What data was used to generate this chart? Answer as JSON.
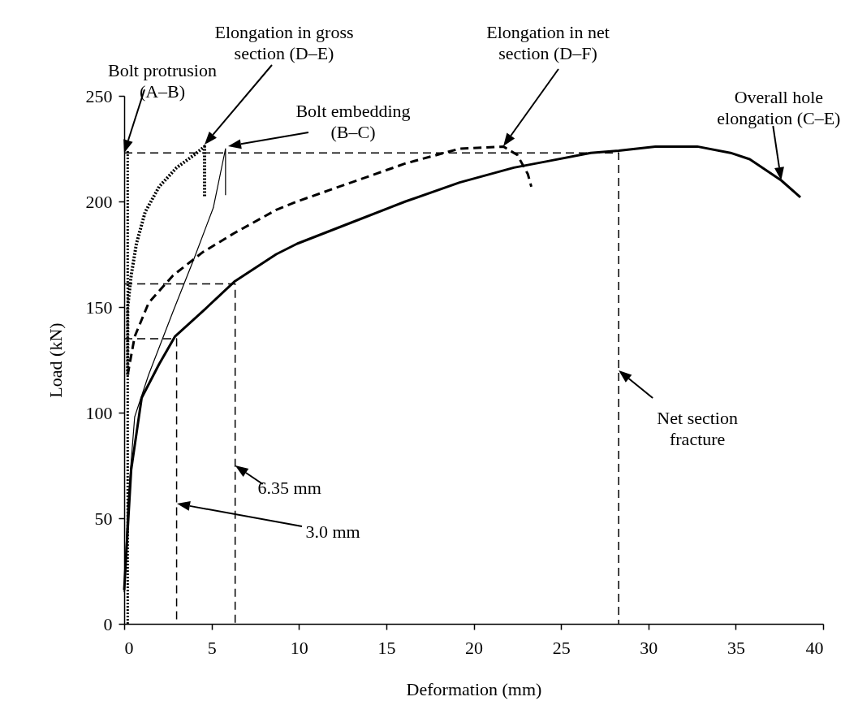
{
  "chart_data": {
    "type": "line",
    "xlabel": "Deformation (mm)",
    "ylabel": "Load (kN)",
    "xlim": [
      0,
      40
    ],
    "ylim": [
      0,
      250
    ],
    "xticks": [
      0,
      5,
      10,
      15,
      20,
      25,
      30,
      35,
      40
    ],
    "yticks": [
      0,
      50,
      100,
      150,
      200,
      250
    ],
    "grid": false,
    "series": [
      {
        "color": "#000000",
        "line_style": "dotted",
        "x": [
          0.2,
          0.2
        ],
        "values": [
          0,
          224
        ]
      },
      {
        "color": "#000000",
        "line_style": "dotted",
        "x": [
          0.2,
          0.2,
          0.4,
          0.7,
          1.2,
          2,
          3,
          4,
          4.6,
          4.6
        ],
        "values": [
          118,
          150,
          165,
          180,
          195,
          207,
          216,
          222,
          226,
          202
        ]
      },
      {
        "color": "#000000",
        "line_style": "solid",
        "x": [
          0,
          0.2,
          0.6,
          1.4,
          2.8,
          4.0,
          5.1,
          5.8,
          5.8
        ],
        "values": [
          15,
          56,
          98,
          118,
          148,
          173,
          197,
          225,
          203
        ]
      },
      {
        "color": "#000000",
        "line_style": "dashed",
        "x": [
          0.2,
          0.6,
          1.4,
          2.8,
          4.5,
          6.3,
          8.7,
          9.9,
          13.0,
          16.1,
          19.2,
          21.7,
          22.5,
          23.1,
          23.3
        ],
        "values": [
          118,
          136,
          152,
          165,
          176,
          185,
          196,
          200,
          209,
          218,
          225,
          226,
          222,
          213,
          207
        ]
      },
      {
        "color": "#000000",
        "line_style": "solid",
        "x": [
          0,
          0.4,
          1.0,
          2.0,
          2.9,
          4.5,
          6.3,
          8.7,
          9.9,
          13.0,
          16.1,
          19.2,
          22.3,
          24.2,
          26.7,
          28.3,
          30.4,
          32.8,
          34.7,
          35.8,
          37.6,
          38.7
        ],
        "values": [
          16,
          73,
          107,
          123,
          136,
          148,
          162,
          175,
          180,
          190,
          200,
          209,
          216,
          219,
          223,
          224,
          226,
          226,
          223,
          220,
          210,
          202
        ]
      },
      {
        "color": "#000000",
        "line_style": "dashed",
        "x": [
          0,
          28.3,
          28.3
        ],
        "values": [
          223,
          223,
          0
        ]
      },
      {
        "color": "#000000",
        "line_style": "dashed",
        "x": [
          0,
          6.35,
          6.35
        ],
        "values": [
          161,
          161,
          0
        ]
      },
      {
        "color": "#000000",
        "line_style": "dashed",
        "x": [
          0,
          3.0,
          3.0
        ],
        "values": [
          135,
          135,
          0
        ]
      }
    ],
    "annotations": [
      {
        "text": "Bolt protrusion\n(A–B)",
        "x": 0,
        "y": 223
      },
      "Elongation in gross\nsection (D–E)",
      "Bolt embedding\n(B–C)",
      "Elongation in net\nsection (D–F)",
      {
        "text": "Overall hole\nelongation (C–E)",
        "x": 37.6,
        "y": 210
      },
      {
        "text": "Net section\nfracture",
        "x": 28.3,
        "y": 120
      },
      {
        "text": "6.35 mm",
        "x": 6.35,
        "y": 75
      },
      "3.0 mm"
    ]
  }
}
